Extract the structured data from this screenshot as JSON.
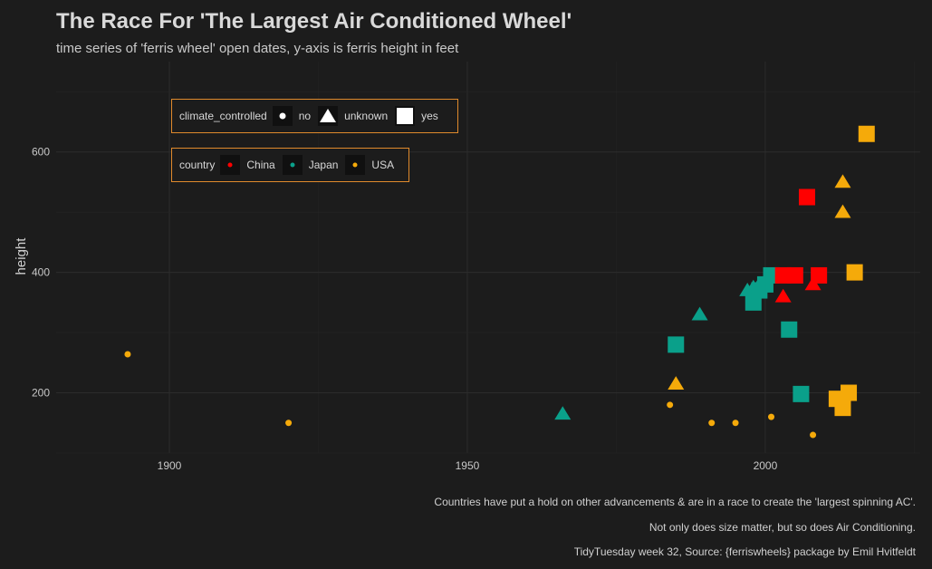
{
  "title": "The Race For 'The Largest Air Conditioned Wheel'",
  "subtitle": "time series of 'ferris wheel' open dates, y-axis is ferris height in feet",
  "captions": [
    "Countries have put a hold on other advancements & are in a race to create the 'largest spinning AC'.",
    "Not only does size matter, but so does Air Conditioning.",
    "TidyTuesday week 32, Source: {ferriswheels} package by Emil Hvitfeldt"
  ],
  "legends": {
    "climate": {
      "title": "climate_controlled",
      "items": [
        {
          "label": "no",
          "shape": "circle"
        },
        {
          "label": "unknown",
          "shape": "triangle"
        },
        {
          "label": "yes",
          "shape": "square"
        }
      ]
    },
    "country": {
      "title": "country",
      "items": [
        {
          "label": "China",
          "color": "#ff0000"
        },
        {
          "label": "Japan",
          "color": "#0aa08a"
        },
        {
          "label": "USA",
          "color": "#f5aa0a"
        }
      ]
    }
  },
  "chart_data": {
    "type": "scatter",
    "title": "The Race For 'The Largest Air Conditioned Wheel'",
    "subtitle": "time series of 'ferris wheel' open dates, y-axis is ferris height in feet",
    "xlabel": "",
    "ylabel": "height",
    "xlim": [
      1881,
      2026
    ],
    "ylim": [
      100,
      750
    ],
    "xticks": [
      1900,
      1950,
      2000
    ],
    "yticks": [
      200,
      400,
      600
    ],
    "grid": true,
    "legend_placement": "top-left inside",
    "colors": {
      "China": "#ff0000",
      "Japan": "#0aa08a",
      "USA": "#f5aa0a",
      "background": "#1c1c1c",
      "legend_border": "#e08a2c"
    },
    "shapes": {
      "no": "circle",
      "unknown": "triangle",
      "yes": "square"
    },
    "points": [
      {
        "x": 1893,
        "y": 264,
        "country": "USA",
        "climate": "no"
      },
      {
        "x": 1920,
        "y": 150,
        "country": "USA",
        "climate": "no"
      },
      {
        "x": 1984,
        "y": 180,
        "country": "USA",
        "climate": "no"
      },
      {
        "x": 1991,
        "y": 150,
        "country": "USA",
        "climate": "no"
      },
      {
        "x": 1995,
        "y": 150,
        "country": "USA",
        "climate": "no"
      },
      {
        "x": 2001,
        "y": 160,
        "country": "USA",
        "climate": "no"
      },
      {
        "x": 2008,
        "y": 130,
        "country": "USA",
        "climate": "no"
      },
      {
        "x": 1985,
        "y": 215,
        "country": "USA",
        "climate": "unknown"
      },
      {
        "x": 2013,
        "y": 550,
        "country": "USA",
        "climate": "unknown"
      },
      {
        "x": 2013,
        "y": 500,
        "country": "USA",
        "climate": "unknown"
      },
      {
        "x": 2012,
        "y": 190,
        "country": "USA",
        "climate": "yes"
      },
      {
        "x": 2013,
        "y": 175,
        "country": "USA",
        "climate": "yes"
      },
      {
        "x": 2014,
        "y": 200,
        "country": "USA",
        "climate": "yes"
      },
      {
        "x": 2015,
        "y": 400,
        "country": "USA",
        "climate": "yes"
      },
      {
        "x": 2017,
        "y": 630,
        "country": "USA",
        "climate": "yes"
      },
      {
        "x": 1966,
        "y": 165,
        "country": "Japan",
        "climate": "unknown"
      },
      {
        "x": 1989,
        "y": 330,
        "country": "Japan",
        "climate": "unknown"
      },
      {
        "x": 1997,
        "y": 370,
        "country": "Japan",
        "climate": "unknown"
      },
      {
        "x": 1998,
        "y": 375,
        "country": "Japan",
        "climate": "unknown"
      },
      {
        "x": 1999,
        "y": 380,
        "country": "Japan",
        "climate": "unknown"
      },
      {
        "x": 1985,
        "y": 280,
        "country": "Japan",
        "climate": "yes"
      },
      {
        "x": 1998,
        "y": 350,
        "country": "Japan",
        "climate": "yes"
      },
      {
        "x": 1999,
        "y": 370,
        "country": "Japan",
        "climate": "yes"
      },
      {
        "x": 2000,
        "y": 380,
        "country": "Japan",
        "climate": "yes"
      },
      {
        "x": 2001,
        "y": 395,
        "country": "Japan",
        "climate": "yes"
      },
      {
        "x": 2004,
        "y": 305,
        "country": "Japan",
        "climate": "yes"
      },
      {
        "x": 2006,
        "y": 198,
        "country": "Japan",
        "climate": "yes"
      },
      {
        "x": 2003,
        "y": 360,
        "country": "China",
        "climate": "unknown"
      },
      {
        "x": 2008,
        "y": 380,
        "country": "China",
        "climate": "unknown"
      },
      {
        "x": 2003,
        "y": 395,
        "country": "China",
        "climate": "yes"
      },
      {
        "x": 2005,
        "y": 395,
        "country": "China",
        "climate": "yes"
      },
      {
        "x": 2007,
        "y": 525,
        "country": "China",
        "climate": "yes"
      },
      {
        "x": 2009,
        "y": 395,
        "country": "China",
        "climate": "yes"
      }
    ]
  }
}
